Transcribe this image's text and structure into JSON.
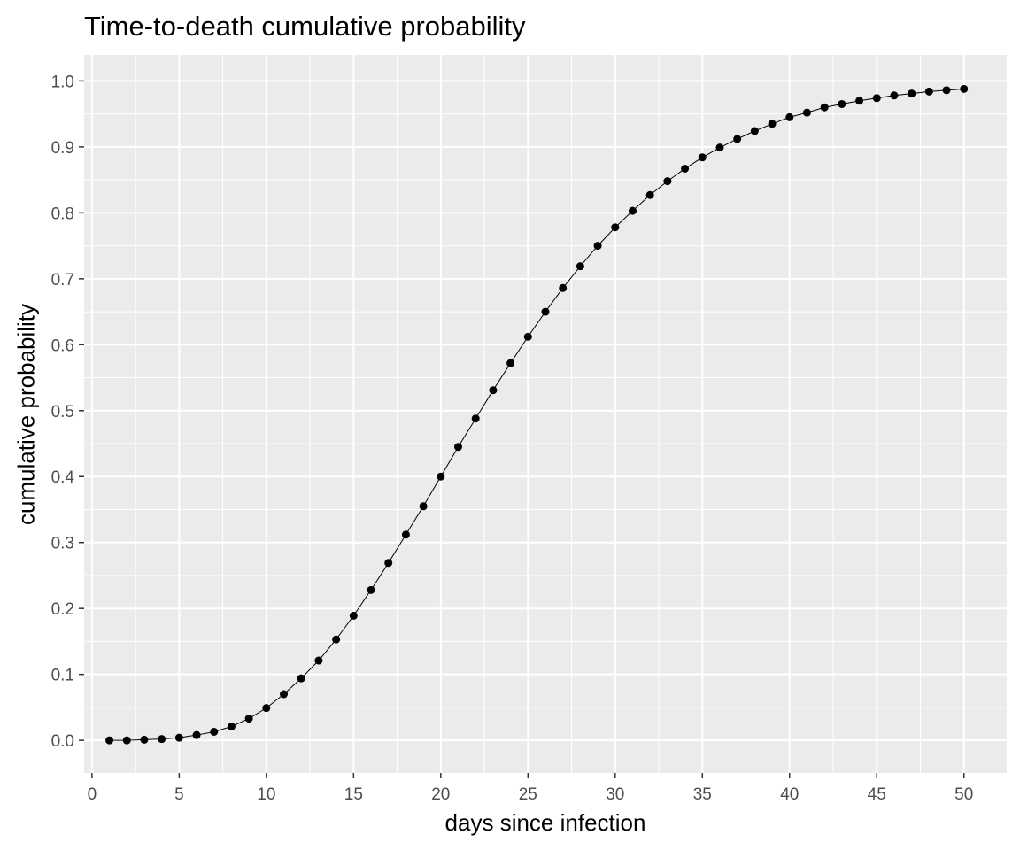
{
  "chart_data": {
    "type": "line",
    "title": "Time-to-death cumulative probability",
    "xlabel": "days since infection",
    "ylabel": "cumulative probability",
    "xlim": [
      -0.45,
      52.45
    ],
    "ylim": [
      -0.0495,
      1.0395
    ],
    "x_ticks": [
      0,
      5,
      10,
      15,
      20,
      25,
      30,
      35,
      40,
      45,
      50
    ],
    "x_tick_labels": [
      "0",
      "5",
      "10",
      "15",
      "20",
      "25",
      "30",
      "35",
      "40",
      "45",
      "50"
    ],
    "y_ticks": [
      0,
      0.1,
      0.2,
      0.3,
      0.4,
      0.5,
      0.6,
      0.7,
      0.8,
      0.9,
      1.0
    ],
    "y_tick_labels": [
      "0.0",
      "0.1",
      "0.2",
      "0.3",
      "0.4",
      "0.5",
      "0.6",
      "0.7",
      "0.8",
      "0.9",
      "1.0"
    ],
    "grid": true,
    "legend": "none",
    "colors": {
      "panel": "#EBEBEB",
      "grid": "#FFFFFF",
      "series": "#000000",
      "tick_text": "#4D4D4D"
    },
    "series": [
      {
        "x": [
          1,
          2,
          3,
          4,
          5,
          6,
          7,
          8,
          9,
          10,
          11,
          12,
          13,
          14,
          15,
          16,
          17,
          18,
          19,
          20,
          21,
          22,
          23,
          24,
          25,
          26,
          27,
          28,
          29,
          30,
          31,
          32,
          33,
          34,
          35,
          36,
          37,
          38,
          39,
          40,
          41,
          42,
          43,
          44,
          45,
          46,
          47,
          48,
          49,
          50
        ],
        "values": [
          0.0,
          0.0,
          0.001,
          0.002,
          0.004,
          0.008,
          0.013,
          0.021,
          0.033,
          0.049,
          0.07,
          0.094,
          0.121,
          0.153,
          0.189,
          0.228,
          0.269,
          0.312,
          0.355,
          0.4,
          0.445,
          0.488,
          0.531,
          0.572,
          0.612,
          0.65,
          0.686,
          0.719,
          0.75,
          0.778,
          0.803,
          0.827,
          0.848,
          0.867,
          0.884,
          0.899,
          0.912,
          0.924,
          0.935,
          0.945,
          0.952,
          0.96,
          0.965,
          0.97,
          0.974,
          0.978,
          0.981,
          0.984,
          0.986,
          0.988
        ]
      }
    ]
  }
}
